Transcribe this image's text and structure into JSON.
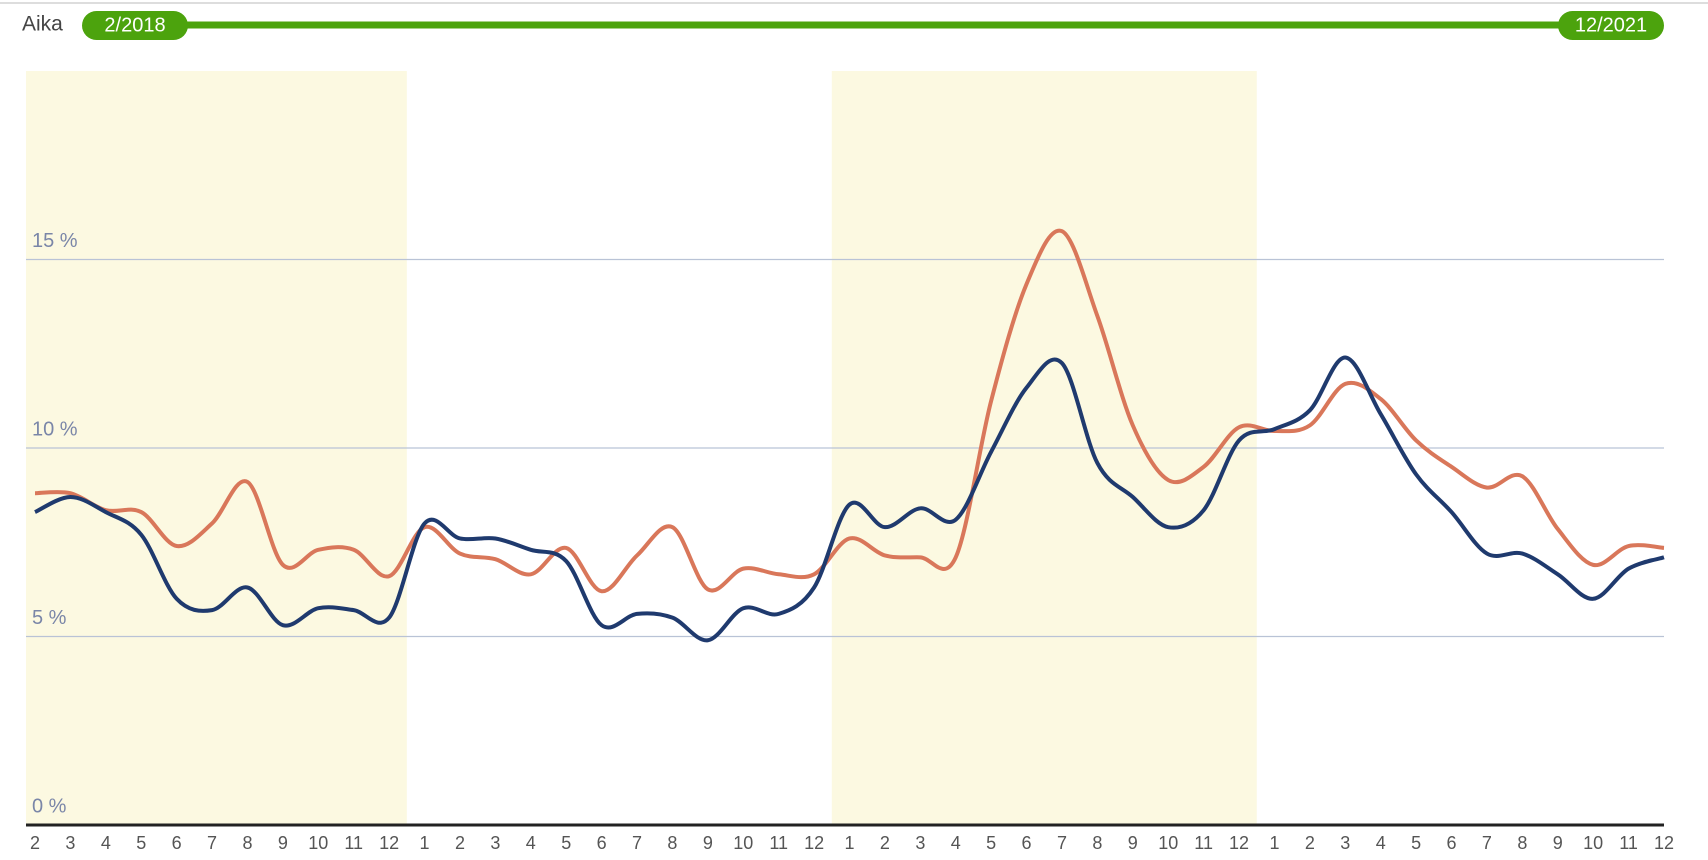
{
  "slider": {
    "label": "Aika",
    "start": "2/2018",
    "end": "12/2021"
  },
  "chart_data": {
    "type": "line",
    "categories": [
      "2",
      "3",
      "4",
      "5",
      "6",
      "7",
      "8",
      "9",
      "10",
      "11",
      "12",
      "1",
      "2",
      "3",
      "4",
      "5",
      "6",
      "7",
      "8",
      "9",
      "10",
      "11",
      "12",
      "1",
      "2",
      "3",
      "4",
      "5",
      "6",
      "7",
      "8",
      "9",
      "10",
      "11",
      "12",
      "1",
      "2",
      "3",
      "4",
      "5",
      "6",
      "7",
      "8",
      "9",
      "10",
      "11",
      "12"
    ],
    "series": [
      {
        "color": "#1f3a6e",
        "values": [
          8.3,
          8.7,
          8.3,
          7.7,
          6.0,
          5.7,
          6.3,
          5.3,
          5.75,
          5.7,
          5.5,
          8.0,
          7.6,
          7.6,
          7.3,
          7.0,
          5.3,
          5.6,
          5.5,
          4.9,
          5.75,
          5.6,
          6.3,
          8.5,
          7.9,
          8.4,
          8.1,
          9.9,
          11.6,
          12.25,
          9.6,
          8.7,
          7.9,
          8.35,
          10.2,
          10.5,
          11.0,
          12.4,
          10.9,
          9.3,
          8.3,
          7.2,
          7.2,
          6.65,
          6.0,
          6.8,
          7.1
        ]
      },
      {
        "color": "#d9775a",
        "values": [
          8.8,
          8.8,
          8.35,
          8.3,
          7.4,
          8.0,
          9.1,
          6.9,
          7.3,
          7.3,
          6.6,
          7.9,
          7.2,
          7.05,
          6.65,
          7.35,
          6.2,
          7.15,
          7.9,
          6.25,
          6.8,
          6.65,
          6.65,
          7.6,
          7.15,
          7.1,
          7.1,
          11.25,
          14.35,
          15.75,
          13.5,
          10.6,
          9.15,
          9.5,
          10.55,
          10.45,
          10.6,
          11.7,
          11.3,
          10.2,
          9.5,
          8.95,
          9.25,
          7.85,
          6.9,
          7.4,
          7.35
        ]
      }
    ],
    "ylim": [
      0,
      20
    ],
    "yticks": [
      {
        "value": 0,
        "label": "0 %"
      },
      {
        "value": 5,
        "label": "5 %"
      },
      {
        "value": 10,
        "label": "10 %"
      },
      {
        "value": 15,
        "label": "15 %"
      }
    ],
    "grid": true
  }
}
